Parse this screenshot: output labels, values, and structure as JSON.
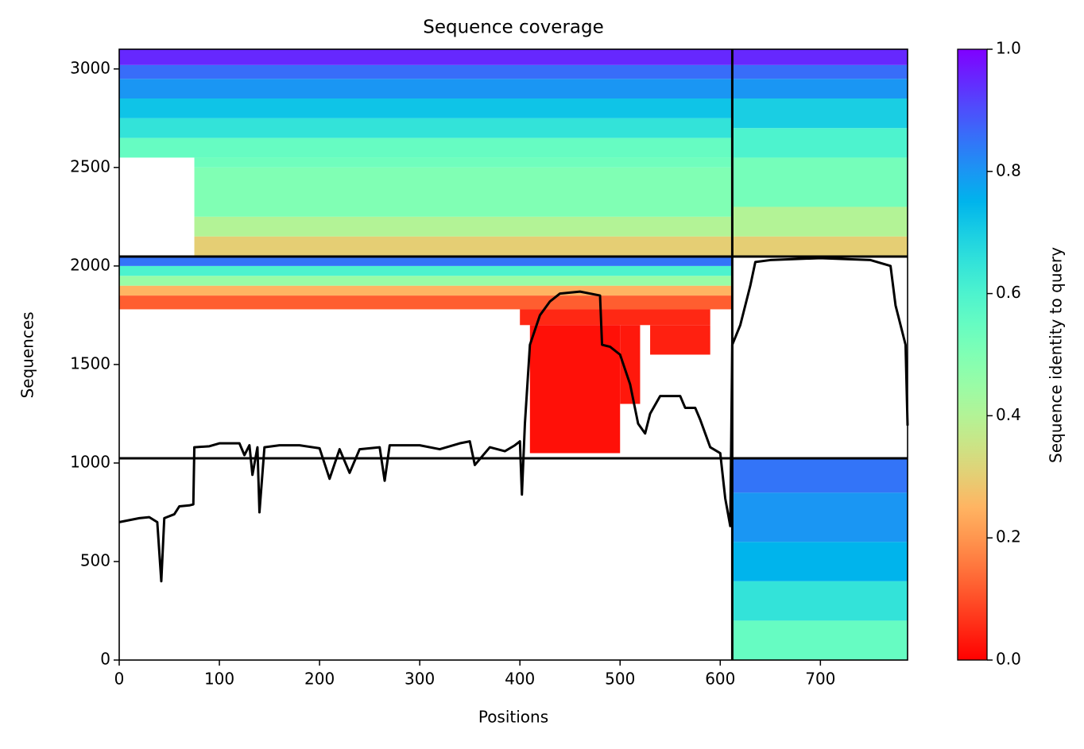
{
  "chart_data": {
    "type": "coverage",
    "title": "Sequence coverage",
    "x_label": "Positions",
    "y_label": "Sequences",
    "colorbar_label": "Sequence identity to query",
    "colormap": "rainbow_r",
    "xlim": [
      0,
      787
    ],
    "ylim": [
      0,
      3100
    ],
    "xticks": [
      0,
      100,
      200,
      300,
      400,
      500,
      600,
      700
    ],
    "yticks": [
      0,
      500,
      1000,
      1500,
      2000,
      2500,
      3000
    ],
    "clim": [
      0,
      1
    ],
    "cticks": [
      {
        "value": 0,
        "label": "0.0"
      },
      {
        "value": 0.2,
        "label": "0.2"
      },
      {
        "value": 0.4,
        "label": "0.4"
      },
      {
        "value": 0.6,
        "label": "0.6"
      },
      {
        "value": 0.8,
        "label": "0.8"
      },
      {
        "value": 1,
        "label": "1.0"
      }
    ],
    "dividers_x": [
      612
    ],
    "dividers_y": [
      1024,
      2048
    ],
    "blocks": [
      {
        "x": [
          75,
          612
        ],
        "y": [
          2048,
          2150
        ],
        "identity": 0.3
      },
      {
        "x": [
          75,
          612
        ],
        "y": [
          2150,
          2250
        ],
        "identity": 0.4
      },
      {
        "x": [
          75,
          612
        ],
        "y": [
          2250,
          2500
        ],
        "identity": 0.5
      },
      {
        "x": [
          0,
          612
        ],
        "y": [
          2550,
          2650
        ],
        "identity": 0.55
      },
      {
        "x": [
          75,
          612
        ],
        "y": [
          2500,
          2550
        ],
        "identity": 0.53
      },
      {
        "x": [
          0,
          612
        ],
        "y": [
          2650,
          2750
        ],
        "identity": 0.65
      },
      {
        "x": [
          0,
          612
        ],
        "y": [
          2750,
          2850
        ],
        "identity": 0.72
      },
      {
        "x": [
          0,
          612
        ],
        "y": [
          2850,
          2950
        ],
        "identity": 0.8
      },
      {
        "x": [
          0,
          612
        ],
        "y": [
          2950,
          3020
        ],
        "identity": 0.86
      },
      {
        "x": [
          0,
          612
        ],
        "y": [
          3020,
          3100
        ],
        "identity": 0.95
      },
      {
        "x": [
          612,
          787
        ],
        "y": [
          2048,
          2150
        ],
        "identity": 0.3
      },
      {
        "x": [
          612,
          787
        ],
        "y": [
          2150,
          2300
        ],
        "identity": 0.4
      },
      {
        "x": [
          612,
          787
        ],
        "y": [
          2300,
          2550
        ],
        "identity": 0.52
      },
      {
        "x": [
          612,
          787
        ],
        "y": [
          2550,
          2700
        ],
        "identity": 0.6
      },
      {
        "x": [
          612,
          787
        ],
        "y": [
          2700,
          2850
        ],
        "identity": 0.7
      },
      {
        "x": [
          612,
          787
        ],
        "y": [
          2850,
          2950
        ],
        "identity": 0.8
      },
      {
        "x": [
          612,
          787
        ],
        "y": [
          2950,
          3020
        ],
        "identity": 0.86
      },
      {
        "x": [
          612,
          787
        ],
        "y": [
          3020,
          3100
        ],
        "identity": 0.95
      },
      {
        "x": [
          0,
          612
        ],
        "y": [
          1780,
          1850
        ],
        "identity": 0.12
      },
      {
        "x": [
          0,
          612
        ],
        "y": [
          1850,
          1900
        ],
        "identity": 0.25
      },
      {
        "x": [
          0,
          612
        ],
        "y": [
          1900,
          1950
        ],
        "identity": 0.45
      },
      {
        "x": [
          0,
          612
        ],
        "y": [
          1950,
          2000
        ],
        "identity": 0.6
      },
      {
        "x": [
          0,
          612
        ],
        "y": [
          2000,
          2048
        ],
        "identity": 0.85
      },
      {
        "x": [
          400,
          590
        ],
        "y": [
          1700,
          1780
        ],
        "identity": 0.05
      },
      {
        "x": [
          410,
          500
        ],
        "y": [
          1050,
          1700
        ],
        "identity": 0.02
      },
      {
        "x": [
          500,
          520
        ],
        "y": [
          1300,
          1700
        ],
        "identity": 0.03
      },
      {
        "x": [
          530,
          590
        ],
        "y": [
          1550,
          1700
        ],
        "identity": 0.04
      },
      {
        "x": [
          612,
          787
        ],
        "y": [
          0,
          200
        ],
        "identity": 0.55
      },
      {
        "x": [
          612,
          787
        ],
        "y": [
          200,
          400
        ],
        "identity": 0.65
      },
      {
        "x": [
          612,
          787
        ],
        "y": [
          400,
          600
        ],
        "identity": 0.75
      },
      {
        "x": [
          612,
          787
        ],
        "y": [
          600,
          850
        ],
        "identity": 0.8
      },
      {
        "x": [
          612,
          787
        ],
        "y": [
          850,
          1024
        ],
        "identity": 0.85
      }
    ],
    "coverage": {
      "x": [
        0,
        10,
        20,
        30,
        38,
        42,
        45,
        55,
        60,
        70,
        74,
        75,
        90,
        100,
        120,
        125,
        130,
        133,
        138,
        140,
        145,
        160,
        180,
        200,
        210,
        220,
        230,
        240,
        260,
        265,
        270,
        300,
        320,
        340,
        350,
        355,
        370,
        385,
        395,
        400,
        402,
        405,
        410,
        420,
        430,
        440,
        460,
        480,
        482,
        490,
        500,
        510,
        518,
        525,
        530,
        540,
        560,
        565,
        575,
        580,
        590,
        600,
        605,
        610,
        612,
        620,
        630,
        635,
        650,
        700,
        750,
        770,
        775,
        785,
        787
      ],
      "values": [
        700,
        710,
        720,
        725,
        700,
        400,
        720,
        740,
        780,
        785,
        790,
        1080,
        1085,
        1100,
        1100,
        1040,
        1090,
        940,
        1080,
        750,
        1080,
        1090,
        1090,
        1075,
        920,
        1070,
        950,
        1070,
        1080,
        910,
        1090,
        1090,
        1070,
        1100,
        1110,
        990,
        1080,
        1060,
        1090,
        1110,
        840,
        1200,
        1600,
        1750,
        1820,
        1860,
        1870,
        1850,
        1600,
        1590,
        1550,
        1400,
        1200,
        1150,
        1250,
        1340,
        1340,
        1280,
        1280,
        1220,
        1080,
        1050,
        820,
        680,
        1600,
        1700,
        1900,
        2020,
        2030,
        2040,
        2030,
        2000,
        1800,
        1600,
        1190
      ]
    }
  }
}
